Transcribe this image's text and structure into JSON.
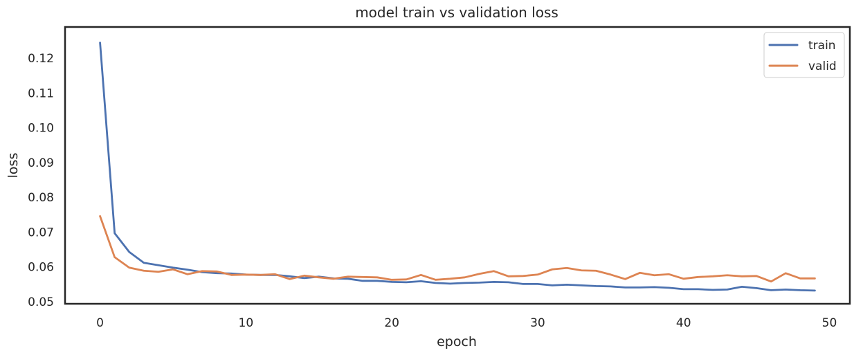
{
  "chart_data": {
    "type": "line",
    "title": "model train vs validation loss",
    "xlabel": "epoch",
    "ylabel": "loss",
    "xlim": [
      -2.4,
      51.4
    ],
    "ylim": [
      0.0494,
      0.129
    ],
    "xticks": [
      0,
      10,
      20,
      30,
      40,
      50
    ],
    "yticks": [
      0.05,
      0.06,
      0.07,
      0.08,
      0.09,
      0.1,
      0.11,
      0.12
    ],
    "ytick_labels": [
      "0.05",
      "0.06",
      "0.07",
      "0.08",
      "0.09",
      "0.10",
      "0.11",
      "0.12"
    ],
    "grid": false,
    "legend_position": "top-right",
    "x": [
      0,
      1,
      2,
      3,
      4,
      5,
      6,
      7,
      8,
      9,
      10,
      11,
      12,
      13,
      14,
      15,
      16,
      17,
      18,
      19,
      20,
      21,
      22,
      23,
      24,
      25,
      26,
      27,
      28,
      29,
      30,
      31,
      32,
      33,
      34,
      35,
      36,
      37,
      38,
      39,
      40,
      41,
      42,
      43,
      44,
      45,
      46,
      47,
      48,
      49
    ],
    "series": [
      {
        "name": "train",
        "color": "#4c72b0",
        "values": [
          0.1245,
          0.0697,
          0.0643,
          0.0612,
          0.0605,
          0.0598,
          0.0592,
          0.0585,
          0.0582,
          0.0581,
          0.0578,
          0.0577,
          0.0577,
          0.0573,
          0.0568,
          0.0572,
          0.0567,
          0.0566,
          0.056,
          0.056,
          0.0557,
          0.0556,
          0.0559,
          0.0554,
          0.0552,
          0.0554,
          0.0555,
          0.0557,
          0.0556,
          0.0551,
          0.0551,
          0.0547,
          0.0549,
          0.0547,
          0.0545,
          0.0544,
          0.0541,
          0.0541,
          0.0542,
          0.054,
          0.0536,
          0.0536,
          0.0534,
          0.0535,
          0.0543,
          0.0539,
          0.0533,
          0.0535,
          0.0533,
          0.0532
        ]
      },
      {
        "name": "valid",
        "color": "#dd8452",
        "values": [
          0.0746,
          0.0628,
          0.0598,
          0.0589,
          0.0586,
          0.0593,
          0.0579,
          0.0588,
          0.0587,
          0.0577,
          0.0578,
          0.0577,
          0.0579,
          0.0565,
          0.0575,
          0.057,
          0.0566,
          0.0572,
          0.0571,
          0.057,
          0.0563,
          0.0564,
          0.0577,
          0.0563,
          0.0566,
          0.057,
          0.058,
          0.0588,
          0.0573,
          0.0574,
          0.0578,
          0.0593,
          0.0597,
          0.059,
          0.0589,
          0.0578,
          0.0565,
          0.0583,
          0.0576,
          0.0579,
          0.0566,
          0.0571,
          0.0573,
          0.0576,
          0.0573,
          0.0574,
          0.0558,
          0.0582,
          0.0567,
          0.0567
        ]
      }
    ]
  }
}
